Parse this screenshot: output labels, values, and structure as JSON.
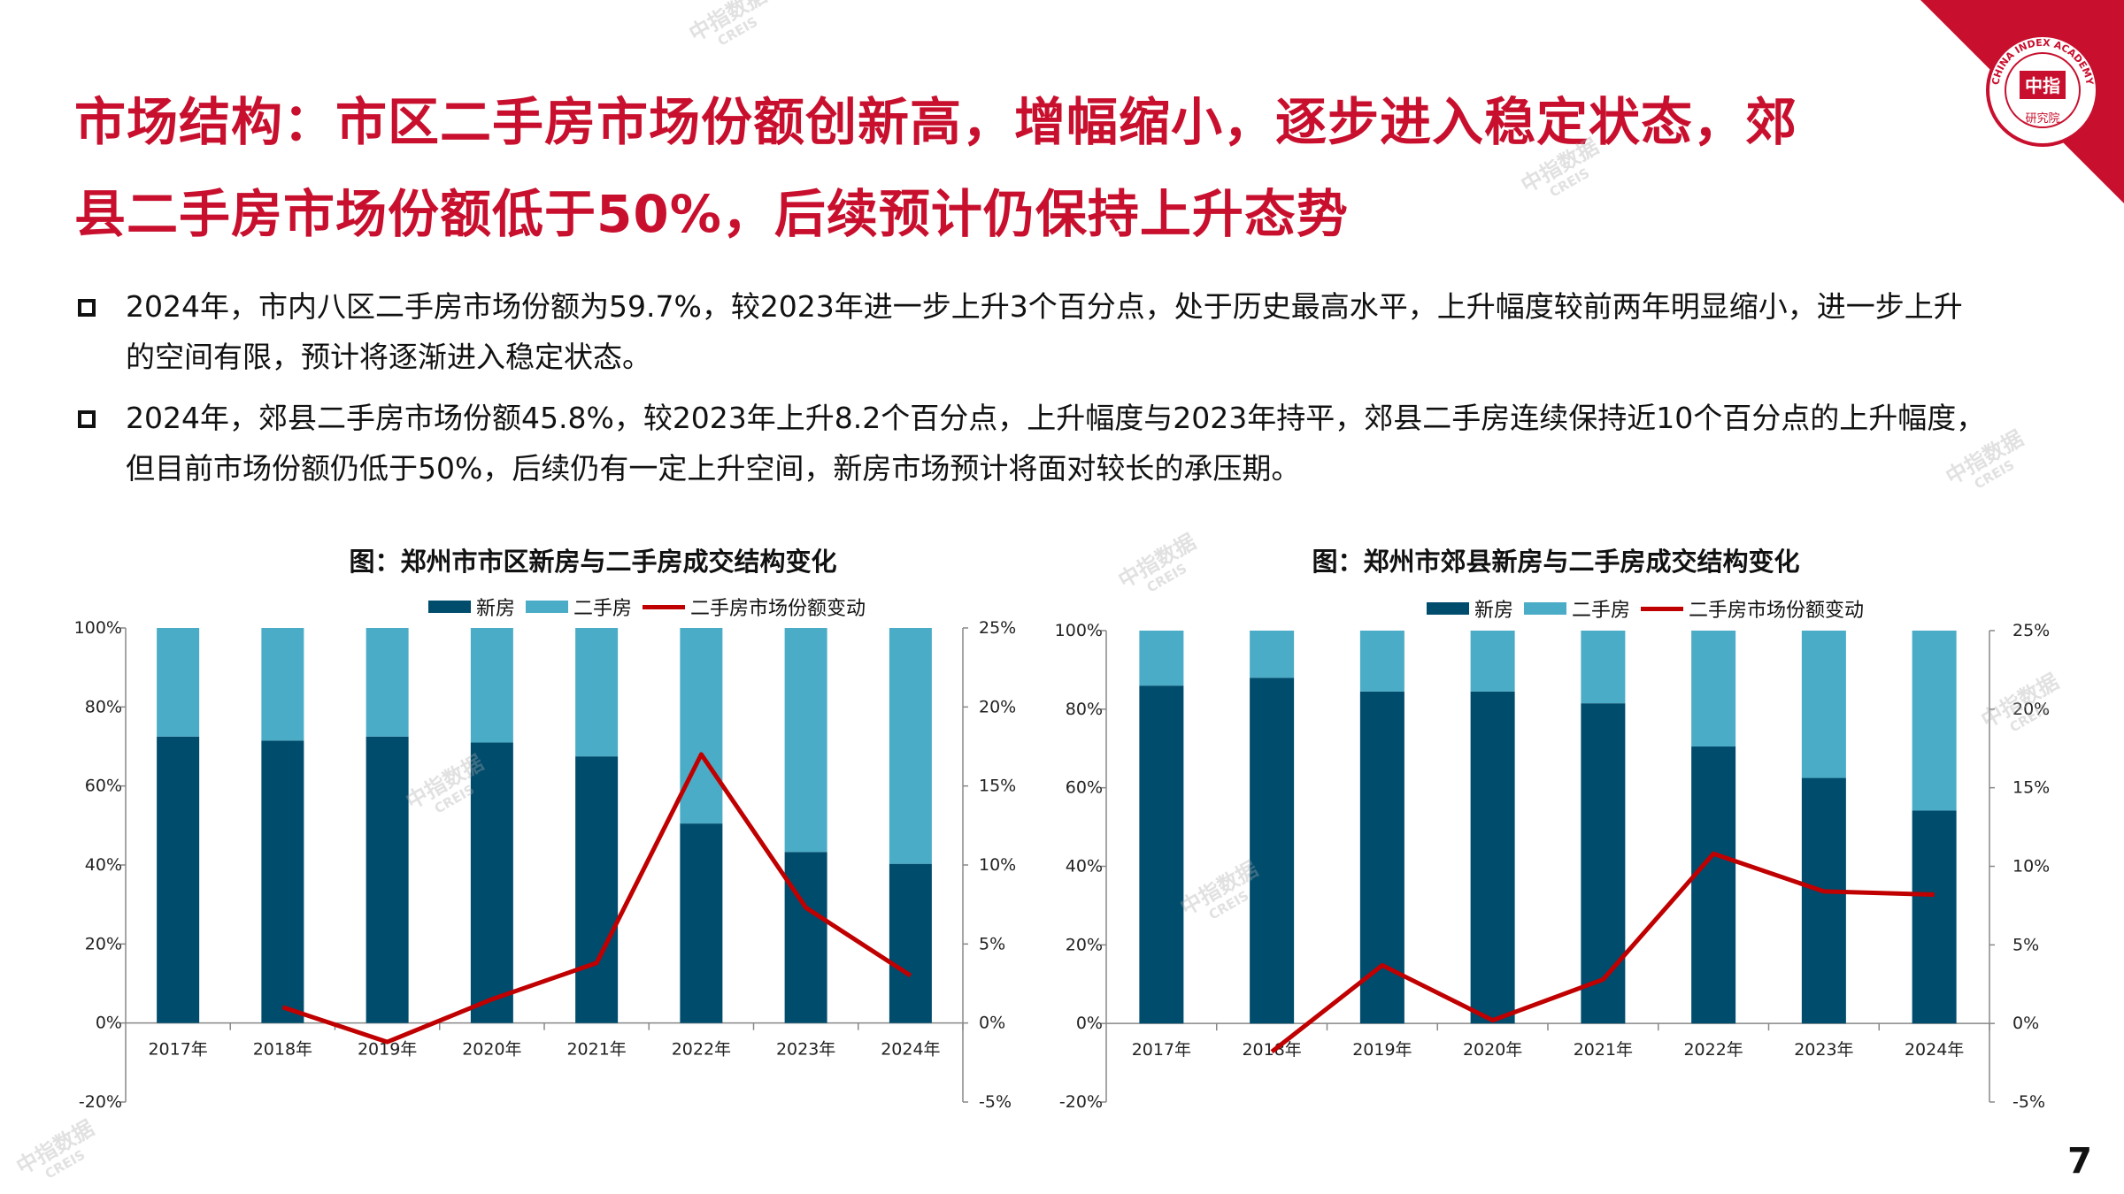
{
  "title": {
    "line1": "市场结构：市区二手房市场份额创新高，增幅缩小，逐步进入稳定状态，郊",
    "line2": "县二手房市场份额低于50%，后续预计仍保持上升态势"
  },
  "bullets": [
    {
      "line1": "2024年，市内八区二手房市场份额为59.7%，较2023年进一步上升3个百分点，处于历史最高水平，上升幅度较前两年明显缩小，进一步上升",
      "line2": "的空间有限，预计将逐渐进入稳定状态。"
    },
    {
      "line1": "2024年，郊县二手房市场份额45.8%，较2023年上升8.2个百分点，上升幅度与2023年持平，郊县二手房连续保持近10个百分点的上升幅度，",
      "line2": "但目前市场份额仍低于50%，后续仍有一定上升空间，新房市场预计将面对较长的承压期。"
    }
  ],
  "logo": {
    "top_text": "CHINA INDEX ACADEMY",
    "center_text": "中指",
    "bottom_text": "研究院"
  },
  "watermark": {
    "cn": "中指数据",
    "en": "CREIS"
  },
  "page_number": "7",
  "colors": {
    "title_red": "#c8102e",
    "new_house": "#004c6d",
    "second_hand": "#4aacc6",
    "share_line": "#c00000"
  },
  "chart_data": [
    {
      "type": "bar",
      "title": "图：郑州市市区新房与二手房成交结构变化",
      "legend": [
        "新房",
        "二手房",
        "二手房市场份额变动"
      ],
      "categories": [
        "2017年",
        "2018年",
        "2019年",
        "2020年",
        "2021年",
        "2022年",
        "2023年",
        "2024年"
      ],
      "series": [
        {
          "name": "新房",
          "values": [
            72.5,
            71.5,
            72.5,
            71,
            67.5,
            50.5,
            43.3,
            40.3
          ]
        },
        {
          "name": "二手房",
          "values": [
            27.5,
            28.5,
            27.5,
            29,
            32.5,
            49.5,
            56.7,
            59.7
          ]
        },
        {
          "name": "二手房市场份额变动",
          "axis": "right",
          "values": [
            null,
            1.0,
            -1.2,
            1.5,
            3.8,
            17.0,
            7.3,
            3.0
          ]
        }
      ],
      "left_ticks": [
        "100%",
        "80%",
        "60%",
        "40%",
        "20%",
        "0%",
        "-20%"
      ],
      "right_ticks": [
        "25%",
        "20%",
        "15%",
        "10%",
        "5%",
        "0%",
        "-5%"
      ],
      "ylim_left": [
        -20,
        100
      ],
      "ylim_right": [
        -5,
        25
      ]
    },
    {
      "type": "bar",
      "title": "图：郑州市郊县新房与二手房成交结构变化",
      "legend": [
        "新房",
        "二手房",
        "二手房市场份额变动"
      ],
      "categories": [
        "2017年",
        "2018年",
        "2019年",
        "2020年",
        "2021年",
        "2022年",
        "2023年",
        "2024年"
      ],
      "series": [
        {
          "name": "新房",
          "values": [
            86,
            88,
            84.5,
            84.5,
            81.5,
            70.5,
            62.5,
            54.2
          ]
        },
        {
          "name": "二手房",
          "values": [
            14,
            12,
            15.5,
            15.5,
            18.5,
            29.5,
            37.5,
            45.8
          ]
        },
        {
          "name": "二手房市场份额变动",
          "axis": "right",
          "values": [
            null,
            -1.8,
            3.7,
            0.2,
            2.8,
            10.8,
            8.4,
            8.2
          ]
        }
      ],
      "left_ticks": [
        "100%",
        "80%",
        "60%",
        "40%",
        "20%",
        "0%",
        "-20%"
      ],
      "right_ticks": [
        "25%",
        "20%",
        "15%",
        "10%",
        "5%",
        "0%",
        "-5%"
      ],
      "ylim_left": [
        -20,
        100
      ],
      "ylim_right": [
        -5,
        25
      ]
    }
  ]
}
